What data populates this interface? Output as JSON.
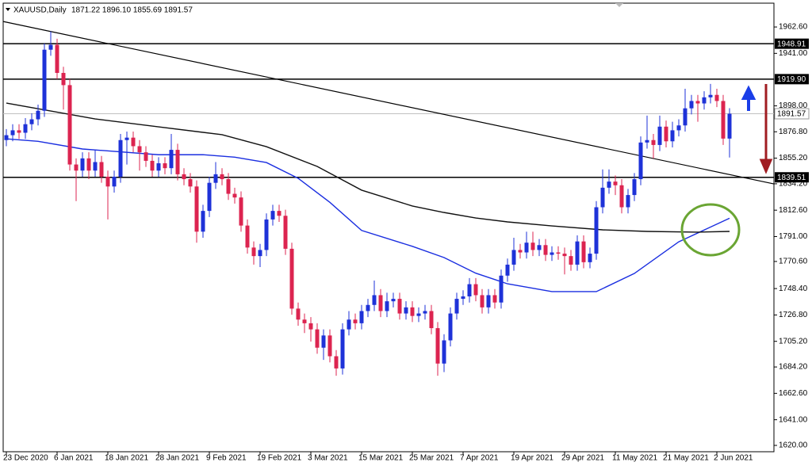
{
  "chart_data": {
    "type": "candlestick",
    "title": "XAUUSD,Daily",
    "subtitle": "1871.22 1896.10 1855.69 1891.57",
    "categories": [
      "23 Dec 2020",
      null,
      null,
      null,
      null,
      null,
      null,
      null,
      "6 Jan 2021",
      null,
      null,
      null,
      null,
      null,
      null,
      null,
      "18 Jan 2021",
      null,
      null,
      null,
      null,
      null,
      null,
      null,
      "28 Jan 2021",
      null,
      null,
      null,
      null,
      null,
      null,
      null,
      "9 Feb 2021",
      null,
      null,
      null,
      null,
      null,
      null,
      null,
      "19 Feb 2021",
      null,
      null,
      null,
      null,
      null,
      null,
      null,
      "3 Mar 2021",
      null,
      null,
      null,
      null,
      null,
      null,
      null,
      "15 Mar 2021",
      null,
      null,
      null,
      null,
      null,
      null,
      null,
      "25 Mar 2021",
      null,
      null,
      null,
      null,
      null,
      null,
      null,
      "7 Apr 2021",
      null,
      null,
      null,
      null,
      null,
      null,
      null,
      "19 Apr 2021",
      null,
      null,
      null,
      null,
      null,
      null,
      null,
      "29 Apr 2021",
      null,
      null,
      null,
      null,
      null,
      null,
      null,
      "11 May 2021",
      null,
      null,
      null,
      null,
      null,
      null,
      null,
      "21 May 2021",
      null,
      null,
      null,
      null,
      null,
      null,
      null,
      "2 Jun 2021",
      null,
      null
    ],
    "open": [
      1870,
      1874,
      1878,
      1876,
      1883,
      1887,
      1894,
      1944,
      1948,
      1925,
      1915,
      1850,
      1845,
      1855,
      1845,
      1852,
      1840,
      1832,
      1840,
      1870,
      1872,
      1865,
      1860,
      1853,
      1845,
      1851,
      1847,
      1862,
      1842,
      1838,
      1832,
      1795,
      1812,
      1835,
      1842,
      1838,
      1826,
      1823,
      1800,
      1782,
      1775,
      1780,
      1805,
      1812,
      1808,
      1781,
      1732,
      1723,
      1720,
      1715,
      1700,
      1710,
      1693,
      1683,
      1715,
      1723,
      1720,
      1730,
      1735,
      1743,
      1730,
      1738,
      1740,
      1728,
      1733,
      1726,
      1728,
      1730,
      1716,
      1687,
      1706,
      1728,
      1740,
      1742,
      1752,
      1743,
      1733,
      1743,
      1737,
      1759,
      1768,
      1780,
      1778,
      1786,
      1780,
      1784,
      1776,
      1778,
      1777,
      1775,
      1768,
      1787,
      1770,
      1777,
      1815,
      1831,
      1836,
      1833,
      1815,
      1825,
      1838,
      1868,
      1870,
      1866,
      1881,
      1869,
      1878,
      1882,
      1896,
      1902,
      1900,
      1905,
      1907,
      1902,
      1871.22
    ],
    "high": [
      1879,
      1883,
      1883,
      1888,
      1892,
      1899,
      1949,
      1959,
      1953,
      1930,
      1920,
      1855,
      1860,
      1860,
      1862,
      1857,
      1845,
      1845,
      1875,
      1877,
      1877,
      1870,
      1865,
      1858,
      1856,
      1856,
      1875,
      1867,
      1847,
      1843,
      1837,
      1817,
      1840,
      1852,
      1847,
      1843,
      1831,
      1828,
      1805,
      1787,
      1785,
      1810,
      1817,
      1817,
      1813,
      1786,
      1737,
      1728,
      1725,
      1720,
      1715,
      1715,
      1698,
      1720,
      1730,
      1728,
      1735,
      1740,
      1755,
      1748,
      1745,
      1745,
      1745,
      1738,
      1738,
      1733,
      1735,
      1735,
      1721,
      1711,
      1733,
      1745,
      1747,
      1757,
      1757,
      1748,
      1748,
      1748,
      1764,
      1773,
      1790,
      1785,
      1795,
      1795,
      1789,
      1789,
      1783,
      1783,
      1782,
      1780,
      1792,
      1792,
      1782,
      1820,
      1846,
      1846,
      1841,
      1838,
      1830,
      1843,
      1873,
      1890,
      1875,
      1890,
      1886,
      1885,
      1887,
      1912,
      1907,
      1907,
      1910,
      1916,
      1912,
      1907,
      1896.1
    ],
    "low": [
      1865,
      1869,
      1871,
      1871,
      1878,
      1882,
      1889,
      1939,
      1920,
      1895,
      1845,
      1820,
      1840,
      1838,
      1840,
      1835,
      1805,
      1827,
      1835,
      1850,
      1860,
      1845,
      1848,
      1840,
      1840,
      1842,
      1842,
      1837,
      1833,
      1827,
      1786,
      1790,
      1807,
      1830,
      1833,
      1821,
      1818,
      1795,
      1777,
      1768,
      1766,
      1775,
      1800,
      1803,
      1776,
      1727,
      1718,
      1712,
      1705,
      1695,
      1690,
      1688,
      1677,
      1678,
      1710,
      1715,
      1715,
      1725,
      1730,
      1725,
      1725,
      1733,
      1723,
      1723,
      1721,
      1721,
      1723,
      1711,
      1677,
      1680,
      1701,
      1723,
      1735,
      1737,
      1738,
      1728,
      1728,
      1732,
      1732,
      1754,
      1763,
      1773,
      1773,
      1775,
      1775,
      1771,
      1771,
      1772,
      1760,
      1763,
      1763,
      1765,
      1765,
      1772,
      1810,
      1826,
      1825,
      1810,
      1810,
      1820,
      1833,
      1863,
      1855,
      1861,
      1864,
      1864,
      1873,
      1877,
      1891,
      1885,
      1895,
      1900,
      1897,
      1866,
      1855.69
    ],
    "close": [
      1874,
      1878,
      1876,
      1883,
      1887,
      1894,
      1944,
      1948,
      1925,
      1915,
      1850,
      1845,
      1855,
      1845,
      1852,
      1840,
      1832,
      1840,
      1870,
      1872,
      1865,
      1860,
      1853,
      1845,
      1851,
      1847,
      1862,
      1842,
      1838,
      1832,
      1795,
      1812,
      1835,
      1842,
      1838,
      1826,
      1823,
      1800,
      1782,
      1775,
      1780,
      1805,
      1812,
      1808,
      1781,
      1732,
      1723,
      1720,
      1715,
      1700,
      1710,
      1693,
      1683,
      1715,
      1723,
      1720,
      1730,
      1735,
      1743,
      1730,
      1738,
      1740,
      1728,
      1733,
      1726,
      1728,
      1730,
      1716,
      1687,
      1706,
      1728,
      1740,
      1742,
      1752,
      1743,
      1733,
      1743,
      1737,
      1759,
      1768,
      1780,
      1778,
      1786,
      1780,
      1784,
      1776,
      1778,
      1777,
      1775,
      1768,
      1787,
      1770,
      1777,
      1815,
      1831,
      1836,
      1833,
      1815,
      1825,
      1838,
      1868,
      1870,
      1866,
      1881,
      1869,
      1878,
      1882,
      1896,
      1902,
      1900,
      1905,
      1907,
      1902,
      1871.22,
      1891.57
    ],
    "up_color": "#1e32d8",
    "down_color": "#dc2450",
    "series": [
      {
        "color": "#1a2ee0",
        "x": [
          0,
          5,
          12,
          24,
          31,
          36,
          41,
          46,
          51,
          56,
          64,
          69,
          74,
          79,
          86,
          93,
          99,
          106,
          114
        ],
        "values": [
          1871,
          1869,
          1862.7,
          1858,
          1858,
          1856,
          1851.6,
          1838.7,
          1819,
          1796,
          1783,
          1773.8,
          1761,
          1752.3,
          1745.9,
          1745.9,
          1760.8,
          1786.7,
          1806
        ]
      },
      {
        "color": "#111111",
        "x": [
          0,
          7,
          14,
          24,
          34,
          41,
          49,
          56,
          64,
          69,
          74,
          79,
          86,
          94,
          101,
          109,
          114
        ],
        "values": [
          1900.3,
          1893.8,
          1887.3,
          1880.8,
          1874.4,
          1864.6,
          1848.4,
          1829,
          1816,
          1810.7,
          1806.2,
          1803,
          1799.7,
          1796.5,
          1795.2,
          1794.6,
          1795.2
        ]
      }
    ],
    "trendline": {
      "x": [
        -0.5,
        121
      ],
      "values": [
        1967.1,
        1834.1
      ]
    },
    "levels": [
      {
        "value": 1948.91,
        "label": "1948.91"
      },
      {
        "value": 1919.9,
        "label": "1919.90"
      },
      {
        "value": 1839.51,
        "label": "1839.51"
      }
    ],
    "last_price": {
      "value": 1891.57,
      "label": "1891.57"
    },
    "xlim": [
      -0.5,
      121
    ],
    "ylim": [
      1614.8,
      1984.7
    ],
    "yticks": [
      {
        "value": 1962.6,
        "label": "1962.60"
      },
      {
        "value": 1941,
        "label": "1941.00"
      },
      {
        "value": 1898,
        "label": "1898.00"
      },
      {
        "value": 1876.8,
        "label": "1876.80"
      },
      {
        "value": 1855.2,
        "label": "1855.20"
      },
      {
        "value": 1834.2,
        "label": "1834.20"
      },
      {
        "value": 1812.6,
        "label": "1812.60"
      },
      {
        "value": 1791,
        "label": "1791.00"
      },
      {
        "value": 1770.6,
        "label": "1770.60"
      },
      {
        "value": 1748.4,
        "label": "1748.40"
      },
      {
        "value": 1726.8,
        "label": "1726.80"
      },
      {
        "value": 1705.2,
        "label": "1705.20"
      },
      {
        "value": 1684.2,
        "label": "1684.20"
      },
      {
        "value": 1662.6,
        "label": "1662.60"
      },
      {
        "value": 1641,
        "label": "1641.00"
      },
      {
        "value": 1620,
        "label": "1620.00"
      }
    ]
  }
}
